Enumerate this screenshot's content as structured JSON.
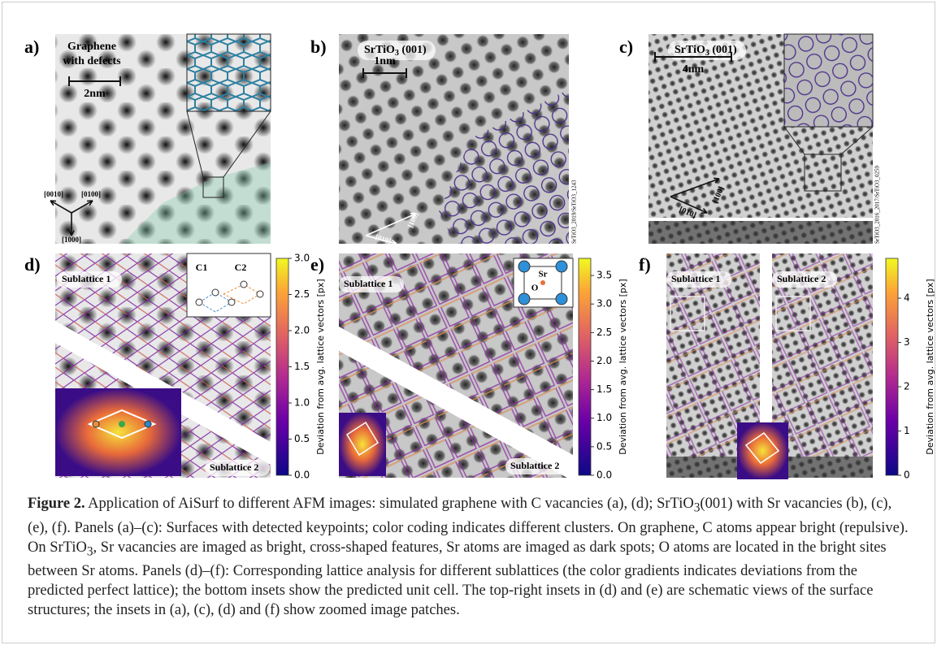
{
  "panel_a": {
    "label": "a)",
    "title_lines": [
      "Graphene",
      "with defects"
    ],
    "scale": "2nm",
    "directions": [
      "[0010]",
      "[0100]",
      "[1000]"
    ]
  },
  "panel_b": {
    "label": "b)",
    "title": {
      "base": "SrTiO",
      "sub": "3",
      "rest": " (001)"
    },
    "scale": "1nm",
    "directions": [
      "[010]",
      "[100]"
    ],
    "source": "SrTiO3_2019/SrTiO3_1243"
  },
  "panel_c": {
    "label": "c)",
    "title": {
      "base": "SrTiO",
      "sub": "3",
      "rest": " (001)"
    },
    "scale": "4nm",
    "directions": [
      "[010]",
      "[100]"
    ],
    "source": "SrTiO3_2016_2017/SrTiO3_0259"
  },
  "panel_d": {
    "label": "d)",
    "sublattices": [
      "Sublattice 1",
      "Sublattice 2"
    ],
    "sites": [
      "C1",
      "C2"
    ],
    "colorbar": {
      "label": "Deviation from avg. lattice vectors [px]",
      "range": [
        0,
        3.0
      ],
      "ticks": [
        {
          "value": 0,
          "label": "0.0"
        },
        0.5,
        {
          "value": 1,
          "label": "1.0"
        },
        1.5,
        {
          "value": 2,
          "label": "2.0"
        },
        2.5,
        {
          "value": 3,
          "label": "3.0"
        }
      ]
    }
  },
  "panel_e": {
    "label": "e)",
    "sublattices": [
      "Sublattice 1",
      "Sublattice 2"
    ],
    "sites": [
      "Sr",
      "O"
    ],
    "colorbar": {
      "label": "Deviation from avg. lattice vectors [px]",
      "range": [
        0,
        3.8
      ],
      "ticks": [
        {
          "value": 0,
          "label": "0.0"
        },
        0.5,
        {
          "value": 1,
          "label": "1.0"
        },
        1.5,
        {
          "value": 2,
          "label": "2.0"
        },
        2.5,
        {
          "value": 3,
          "label": "3.0"
        },
        3.5
      ]
    }
  },
  "panel_f": {
    "label": "f)",
    "sublattices": [
      "Sublattice 1",
      "Sublattice 2"
    ],
    "colorbar": {
      "label": "Deviation from avg. lattice vectors [px]",
      "range": [
        0,
        4.9
      ],
      "ticks": [
        0,
        1,
        2,
        3,
        4
      ]
    }
  },
  "caption": [
    {
      "text": "Figure 2.",
      "style": "bold"
    },
    {
      "text": " Application of AiSurf to different AFM images: simulated graphene with C vacancies (a), (d); SrTiO"
    },
    {
      "text": "3",
      "style": "sub"
    },
    {
      "text": "(001) with Sr vacancies (b), (c), (e), (f). Panels (a)–(c): Surfaces with detected keypoints; color coding indicates different clusters. On graphene, C atoms appear bright (repulsive). On SrTiO"
    },
    {
      "text": "3",
      "style": "sub"
    },
    {
      "text": ", Sr vacancies are imaged as bright, cross-shaped features, Sr atoms are imaged as dark spots; O atoms are located in the bright sites between Sr atoms. Panels (d)–(f): Corresponding lattice analysis for different sublattices (the color gradients indicates deviations from the predicted perfect lattice); the bottom insets show the predicted unit cell. The top-right insets in (d) and (e) are schematic views of the surface structures; the insets in (a), (c), (d) and (f) show zoomed image patches."
    }
  ]
}
